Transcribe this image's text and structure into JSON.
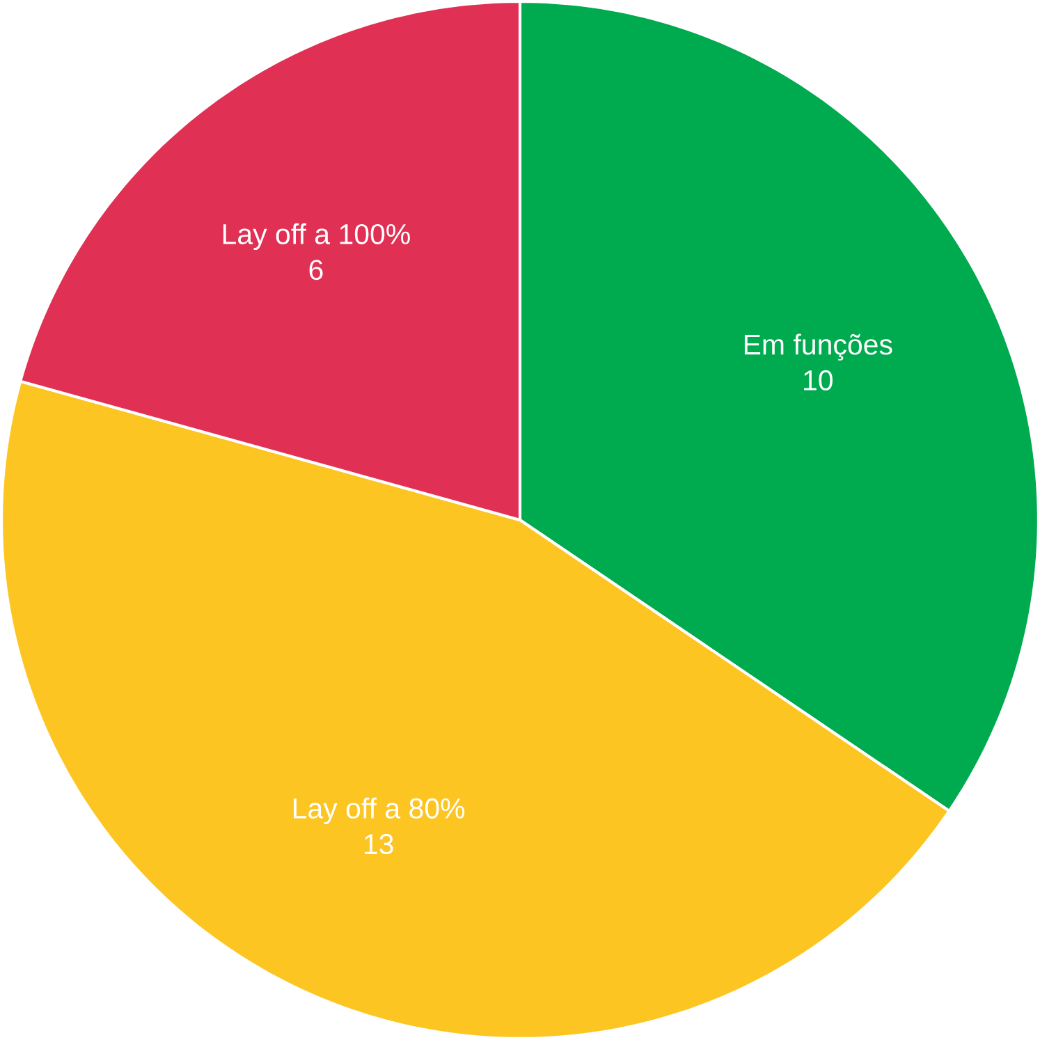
{
  "chart_data": {
    "type": "pie",
    "categories": [
      "Em funções",
      "Lay off a 80%",
      "Lay off a 100%"
    ],
    "values": [
      10,
      13,
      6
    ],
    "value_labels": [
      "10",
      "13",
      "6"
    ],
    "colors": [
      "#00aa4f",
      "#fdc521",
      "#e03054"
    ]
  }
}
